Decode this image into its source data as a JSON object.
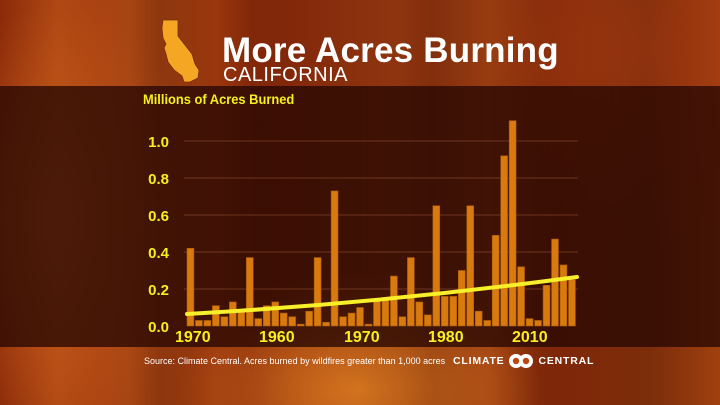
{
  "header": {
    "title": "More Acres Burning",
    "subtitle": "CALIFORNIA",
    "state_icon": "california-shape-icon"
  },
  "footer": {
    "source": "Source: Climate Central. Acres burned by wildfires greater than 1,000 acres",
    "logo_left": "CLIMATE",
    "logo_right": "CENTRAL",
    "logo_icon": "climate-central-rings-icon"
  },
  "colors": {
    "bar": "#d97a0e",
    "trend": "#f7ef2a",
    "label": "#f6f01c",
    "band": "#280802"
  },
  "chart_data": {
    "type": "bar",
    "title": "More Acres Burning — California",
    "ylabel": "Millions of Acres Burned",
    "xlabel": "",
    "ylim": [
      0,
      1.1
    ],
    "yticks": [
      "0.0",
      "0.2",
      "0.4",
      "0.6",
      "0.8",
      "1.0"
    ],
    "xtick_labels": [
      "1970",
      "1960",
      "1970",
      "1980",
      "2010"
    ],
    "grid": true,
    "legend": null,
    "series": [
      {
        "name": "Acres burned (millions)",
        "values": [
          0.42,
          0.03,
          0.03,
          0.11,
          0.05,
          0.13,
          0.09,
          0.37,
          0.04,
          0.11,
          0.13,
          0.07,
          0.05,
          0.01,
          0.08,
          0.37,
          0.02,
          0.73,
          0.05,
          0.07,
          0.1,
          0.01,
          0.14,
          0.14,
          0.27,
          0.05,
          0.37,
          0.13,
          0.06,
          0.65,
          0.16,
          0.16,
          0.3,
          0.65,
          0.08,
          0.03,
          0.49,
          0.92,
          1.11,
          0.32,
          0.04,
          0.03,
          0.22,
          0.47,
          0.33,
          0.25
        ]
      },
      {
        "name": "Trend",
        "type": "line",
        "start": 0.065,
        "end": 0.265
      }
    ]
  }
}
